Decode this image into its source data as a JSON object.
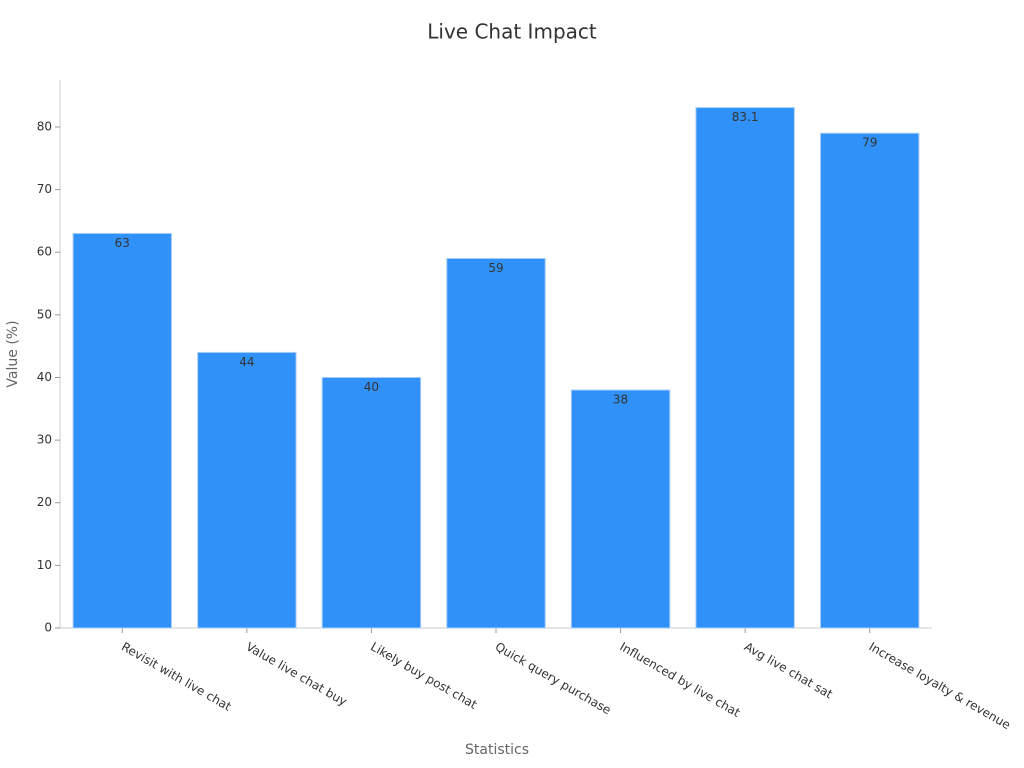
{
  "chart_data": {
    "type": "bar",
    "title": "Live Chat Impact",
    "x_label": "Statistics",
    "y_label": "Value (%)",
    "categories": [
      "Revisit with live chat",
      "Value live chat buy",
      "Likely buy post chat",
      "Quick query purchase",
      "Influenced by live chat",
      "Avg live chat sat",
      "Increase loyalty & revenue"
    ],
    "values": [
      63,
      44,
      40,
      59,
      38,
      83.1,
      79
    ],
    "color": "#3092f8",
    "ylim": [
      0,
      87.5
    ],
    "yticks": [
      0,
      10,
      20,
      30,
      40,
      50,
      60,
      70,
      80
    ],
    "grid": false
  }
}
